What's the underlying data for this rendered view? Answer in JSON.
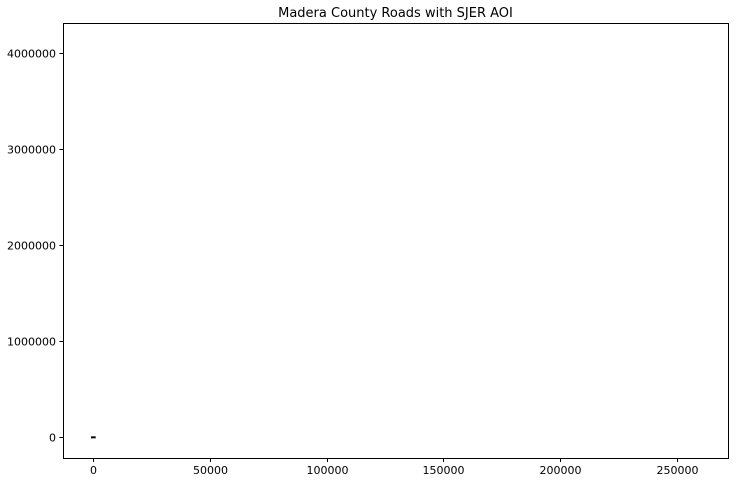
{
  "chart_data": {
    "type": "line",
    "title": "Madera County Roads with SJER AOI",
    "xlabel": "",
    "ylabel": "",
    "xlim": [
      -13000,
      272000
    ],
    "ylim": [
      -215000,
      4315000
    ],
    "x_ticks": [
      0,
      50000,
      100000,
      150000,
      200000,
      250000
    ],
    "x_tick_labels": [
      "0",
      "50000",
      "100000",
      "150000",
      "200000",
      "250000"
    ],
    "y_ticks": [
      0,
      1000000,
      2000000,
      3000000,
      4000000
    ],
    "y_tick_labels": [
      "0",
      "1000000",
      "2000000",
      "3000000",
      "4000000"
    ],
    "grid": false,
    "legend": "none",
    "series": [
      {
        "color": "#000000",
        "x": [
          -1000,
          1000
        ],
        "y": [
          0,
          0
        ]
      }
    ]
  }
}
